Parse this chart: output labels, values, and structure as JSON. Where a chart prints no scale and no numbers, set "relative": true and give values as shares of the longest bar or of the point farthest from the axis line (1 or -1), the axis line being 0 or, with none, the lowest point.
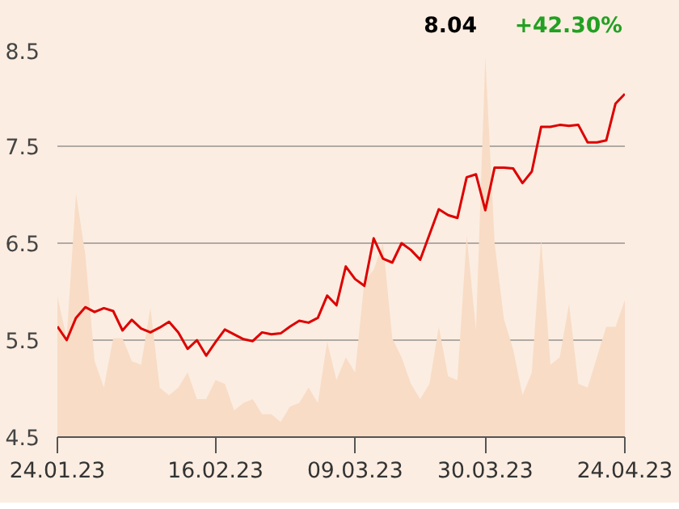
{
  "chart_data": [
    {
      "type": "line",
      "categories": [
        "24.01.23",
        null,
        null,
        null,
        null,
        null,
        null,
        null,
        null,
        null,
        null,
        null,
        null,
        null,
        null,
        null,
        null,
        "16.02.23",
        null,
        null,
        null,
        null,
        null,
        null,
        null,
        null,
        null,
        null,
        null,
        null,
        null,
        null,
        "09.03.23",
        null,
        null,
        null,
        null,
        null,
        null,
        null,
        null,
        null,
        null,
        null,
        null,
        null,
        "30.03.23",
        null,
        null,
        null,
        null,
        null,
        null,
        null,
        null,
        null,
        null,
        null,
        null,
        null,
        null,
        "24.04.23"
      ],
      "series": [
        {
          "color": "#dd0000",
          "values": [
            5.64,
            5.5,
            5.73,
            5.84,
            5.79,
            5.83,
            5.8,
            5.6,
            5.71,
            5.62,
            5.58,
            5.63,
            5.69,
            5.58,
            5.41,
            5.5,
            5.34,
            5.48,
            5.61,
            5.56,
            5.51,
            5.49,
            5.58,
            5.56,
            5.57,
            5.64,
            5.7,
            5.68,
            5.73,
            5.96,
            5.86,
            6.26,
            6.13,
            6.06,
            6.55,
            6.34,
            6.3,
            6.5,
            6.43,
            6.33,
            6.59,
            6.85,
            6.79,
            6.76,
            7.18,
            7.21,
            6.84,
            7.28,
            7.28,
            7.27,
            7.12,
            7.24,
            7.7,
            7.7,
            7.72,
            7.71,
            7.72,
            7.54,
            7.54,
            7.56,
            7.94,
            8.04
          ]
        }
      ],
      "ylim": [
        4.5,
        8.5
      ],
      "yticks": [
        4.5,
        5.5,
        6.5,
        7.5,
        8.5
      ],
      "grid": "y",
      "line_style": "solid",
      "annotations": [
        "8.04",
        "+42.30%"
      ]
    },
    {
      "type": "area",
      "relative": true,
      "categories": [
        null,
        null,
        null,
        null,
        null,
        null,
        null,
        null,
        null,
        null,
        null,
        null,
        null,
        null,
        null,
        null,
        null,
        null,
        null,
        null,
        null,
        null,
        null,
        null,
        null,
        null,
        null,
        null,
        null,
        null,
        null,
        null,
        null,
        null,
        null,
        null,
        null,
        null,
        null,
        null,
        null,
        null,
        null,
        null,
        null,
        null,
        null,
        null,
        null,
        null,
        null,
        null,
        null,
        null,
        null,
        null,
        null,
        null,
        null,
        null,
        null,
        null
      ],
      "series": [
        {
          "color": "#f8dcc6",
          "values": [
            0.37,
            0.26,
            0.64,
            0.48,
            0.2,
            0.13,
            0.26,
            0.26,
            0.2,
            0.19,
            0.34,
            0.13,
            0.11,
            0.13,
            0.17,
            0.1,
            0.1,
            0.15,
            0.14,
            0.07,
            0.09,
            0.1,
            0.06,
            0.06,
            0.04,
            0.08,
            0.09,
            0.13,
            0.09,
            0.25,
            0.15,
            0.21,
            0.17,
            0.41,
            0.44,
            0.51,
            0.26,
            0.21,
            0.14,
            0.1,
            0.14,
            0.29,
            0.16,
            0.15,
            0.53,
            0.28,
            1,
            0.51,
            0.31,
            0.23,
            0.11,
            0.17,
            0.52,
            0.19,
            0.21,
            0.35,
            0.14,
            0.13,
            0.21,
            0.29,
            0.29,
            0.36
          ]
        }
      ]
    }
  ]
}
